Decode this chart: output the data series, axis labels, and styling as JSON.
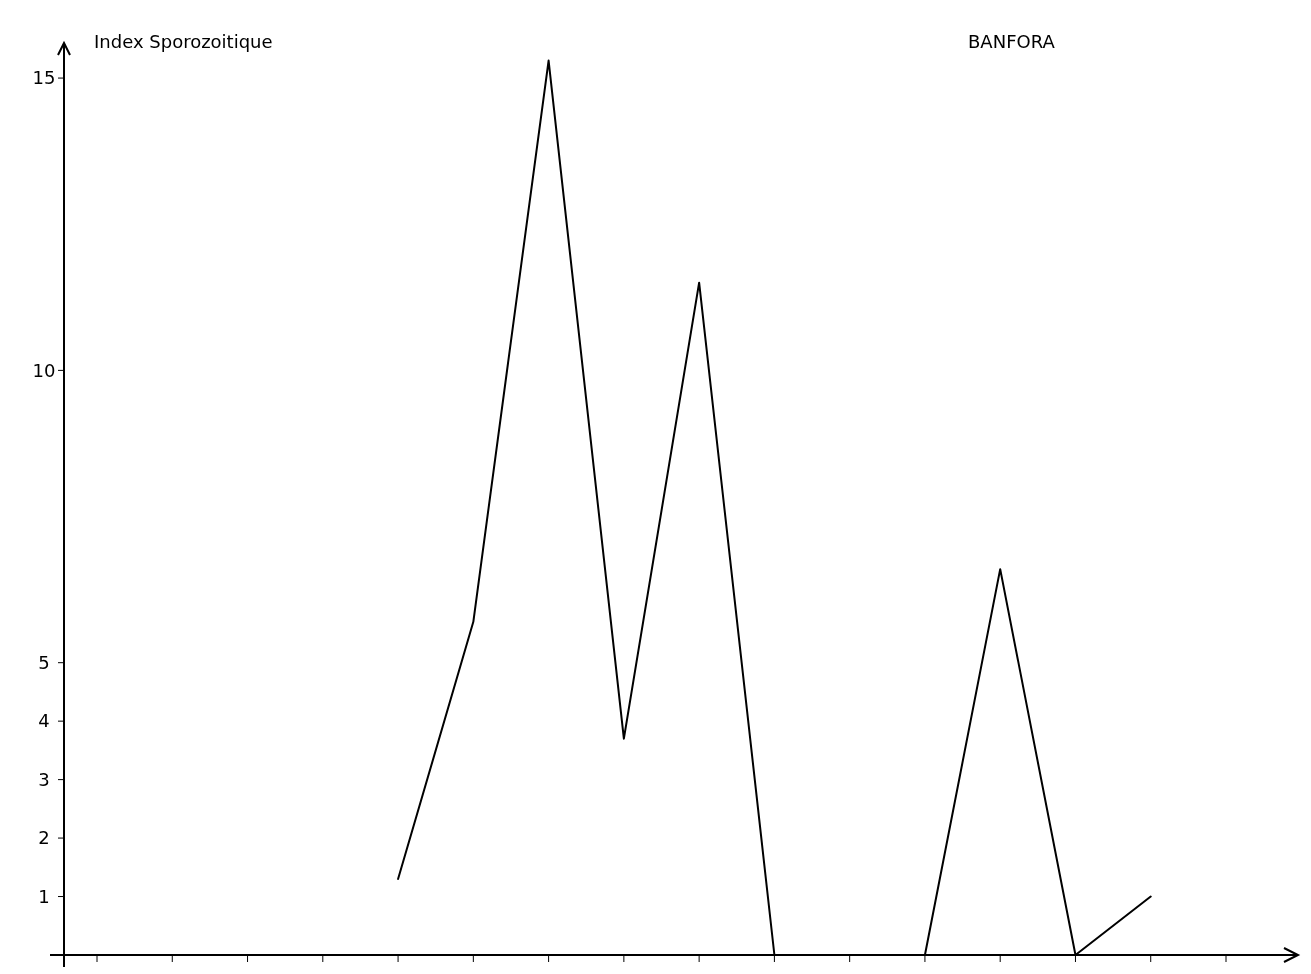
{
  "chart_data": {
    "type": "line",
    "title": "BANFORA",
    "ylabel": "Index Sporozoitique",
    "categories": [
      null,
      null,
      null,
      null,
      null,
      null,
      null,
      null,
      null,
      null,
      null,
      null,
      null,
      null,
      null,
      null
    ],
    "series": [
      {
        "color": "#000000",
        "values": [
          null,
          null,
          null,
          null,
          1.3,
          5.7,
          15.3,
          3.7,
          11.5,
          0,
          0,
          0,
          6.6,
          0,
          1.0,
          null
        ]
      }
    ],
    "ylim": [
      0,
      15.6
    ],
    "yticks": [
      1,
      2,
      3,
      4,
      5,
      10,
      15
    ],
    "tick_labels": "y",
    "grid": false,
    "marker": "none",
    "line_style": "solid"
  }
}
